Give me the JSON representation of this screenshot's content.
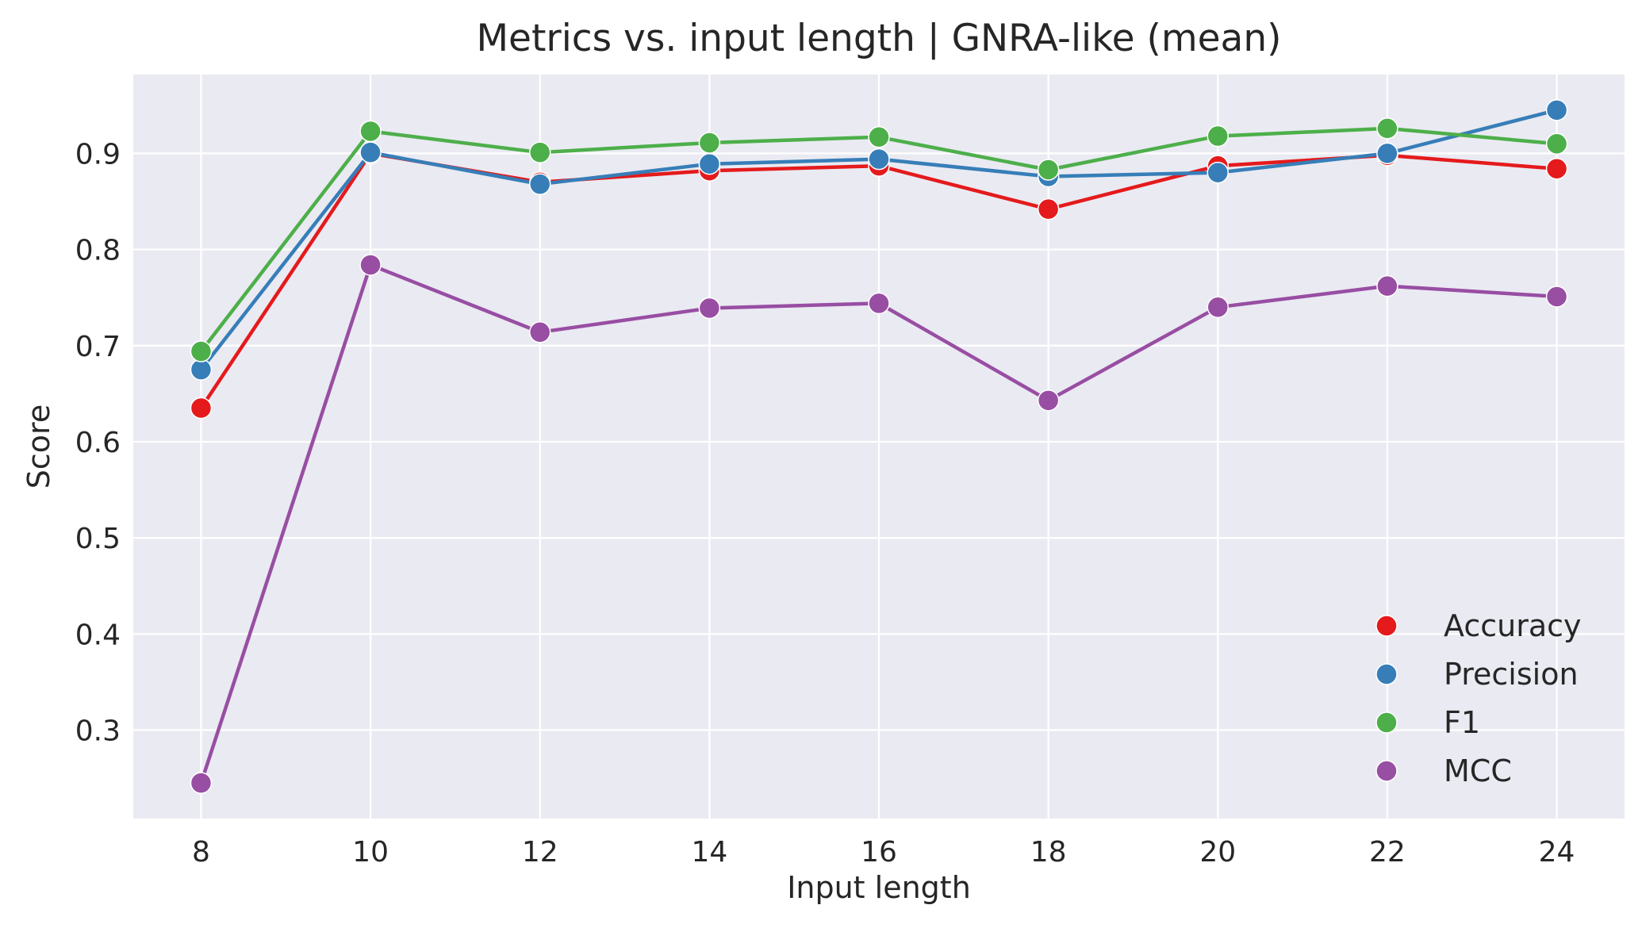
{
  "chart_data": {
    "type": "line",
    "title": "Metrics vs. input length | GNRA-like (mean)",
    "xlabel": "Input length",
    "ylabel": "Score",
    "x": [
      8,
      10,
      12,
      14,
      16,
      18,
      20,
      22,
      24
    ],
    "xlim": [
      7.2,
      24.8
    ],
    "ylim": [
      0.208,
      0.982
    ],
    "xticks": [
      8,
      10,
      12,
      14,
      16,
      18,
      20,
      22,
      24
    ],
    "yticks": [
      0.3,
      0.4,
      0.5,
      0.6,
      0.7,
      0.8,
      0.9
    ],
    "grid": true,
    "legend_position": "lower-right",
    "series": [
      {
        "name": "Accuracy",
        "color": "#e41a1c",
        "values": [
          0.635,
          0.9,
          0.87,
          0.882,
          0.887,
          0.842,
          0.887,
          0.898,
          0.884
        ]
      },
      {
        "name": "Precision",
        "color": "#377eb8",
        "values": [
          0.675,
          0.901,
          0.868,
          0.889,
          0.894,
          0.876,
          0.88,
          0.9,
          0.945
        ]
      },
      {
        "name": "F1",
        "color": "#4daf4a",
        "values": [
          0.694,
          0.923,
          0.901,
          0.911,
          0.917,
          0.883,
          0.918,
          0.926,
          0.91
        ]
      },
      {
        "name": "MCC",
        "color": "#984ea3",
        "values": [
          0.245,
          0.784,
          0.714,
          0.739,
          0.744,
          0.643,
          0.74,
          0.762,
          0.751
        ]
      }
    ]
  }
}
